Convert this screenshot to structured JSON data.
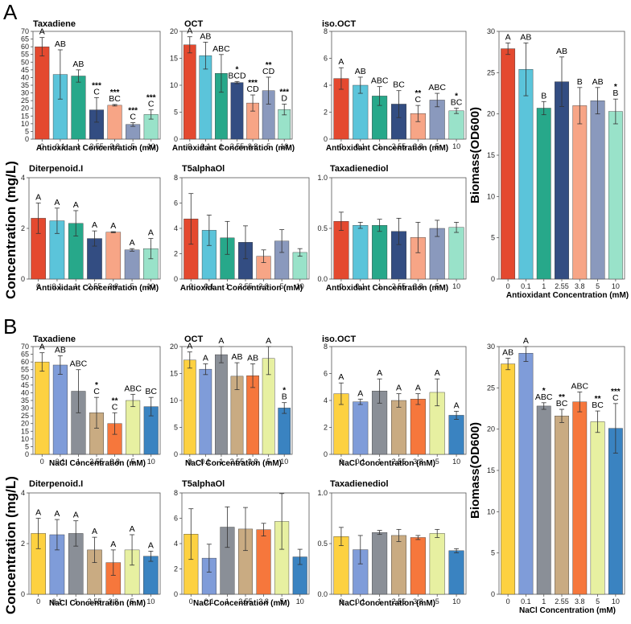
{
  "figure": {
    "section_a_label": "A",
    "section_b_label": "B",
    "concentration_ylabel": "Concentration (mg/L)",
    "biomass_ylabel": "Biomass(OD600)"
  },
  "sections": [
    {
      "label": "A",
      "xlabel": "Antioxidant Concentration (mM)",
      "categories": [
        "0",
        "0.1",
        "1",
        "2.55",
        "3.8",
        "5",
        "10"
      ],
      "colors": [
        "#e4492f",
        "#5bc4da",
        "#27a88a",
        "#334d82",
        "#f7a586",
        "#8a99bd",
        "#99e2c9"
      ]
    },
    {
      "label": "B",
      "xlabel": "NaCl Concentration (mM)",
      "categories": [
        "0",
        "0.1",
        "1",
        "2.55",
        "3.8",
        "5",
        "10"
      ],
      "colors": [
        "#fdd141",
        "#7f9cd9",
        "#8a8f97",
        "#c9ab82",
        "#f6773c",
        "#e7f0a1",
        "#3a83c1"
      ]
    }
  ],
  "chart_data": [
    {
      "type": "bar",
      "section": "A",
      "title": "Taxadiene",
      "xlabel": "Antioxidant Concentration (mM)",
      "ylabel": "Concentration (mg/L)",
      "categories": [
        "0",
        "0.1",
        "1",
        "2.55",
        "3.8",
        "5",
        "10"
      ],
      "values": [
        60,
        42,
        41,
        19,
        22,
        9.5,
        16
      ],
      "errors": [
        6,
        16,
        4,
        8,
        0.5,
        1.2,
        3
      ],
      "ylim": [
        0,
        70
      ],
      "yticks": [
        0,
        5,
        10,
        15,
        20,
        25,
        30,
        35,
        40,
        45,
        50,
        55,
        60,
        65,
        70
      ],
      "letters": [
        "A",
        "AB",
        "AB",
        "C",
        "BC",
        "C",
        "C"
      ],
      "stars": [
        "",
        "",
        "",
        "***",
        "***",
        "***",
        "***"
      ]
    },
    {
      "type": "bar",
      "section": "A",
      "title": "OCT",
      "xlabel": "Antioxidant Concentration (mM)",
      "ylabel": "Concentration (mg/L)",
      "categories": [
        "0",
        "0.1",
        "1",
        "2.55",
        "3.8",
        "5",
        "10"
      ],
      "values": [
        17.5,
        15.5,
        12.2,
        10.5,
        6.7,
        9,
        5.5
      ],
      "errors": [
        1.5,
        2.5,
        3.5,
        0.2,
        1.5,
        2.5,
        1
      ],
      "ylim": [
        0,
        20
      ],
      "yticks": [
        0,
        5,
        10,
        15,
        20
      ],
      "letters": [
        "A",
        "AB",
        "ABC",
        "BCD",
        "CD",
        "CD",
        "D"
      ],
      "stars": [
        "",
        "",
        "",
        "*",
        "***",
        "**",
        "***"
      ]
    },
    {
      "type": "bar",
      "section": "A",
      "title": "iso.OCT",
      "xlabel": "Antioxidant Concentration (mM)",
      "ylabel": "Concentration (mg/L)",
      "categories": [
        "0",
        "0.1",
        "1",
        "2.55",
        "3.8",
        "5",
        "10"
      ],
      "values": [
        4.5,
        4.0,
        3.2,
        2.6,
        1.9,
        2.9,
        2.1
      ],
      "errors": [
        0.8,
        0.6,
        0.7,
        1.0,
        0.6,
        0.5,
        0.2
      ],
      "ylim": [
        0,
        8
      ],
      "yticks": [
        0,
        2,
        4,
        6,
        8
      ],
      "letters": [
        "A",
        "AB",
        "ABC",
        "BC",
        "C",
        "ABC",
        "BC"
      ],
      "stars": [
        "",
        "",
        "",
        "",
        "**",
        "",
        "*"
      ]
    },
    {
      "type": "bar",
      "section": "A",
      "title": "Diterpenoid.I",
      "xlabel": "Antioxidant Concentration (mM)",
      "ylabel": "Concentration (mg/L)",
      "categories": [
        "0",
        "0.1",
        "1",
        "2.55",
        "3.8",
        "5",
        "10"
      ],
      "values": [
        2.4,
        2.3,
        2.2,
        1.6,
        1.85,
        1.15,
        1.2
      ],
      "errors": [
        0.6,
        0.5,
        0.5,
        0.3,
        0.02,
        0.05,
        0.4
      ],
      "ylim": [
        0,
        4
      ],
      "yticks": [
        0,
        2,
        4
      ],
      "letters": [
        "A",
        "A",
        "A",
        "A",
        "A",
        "A",
        "A"
      ],
      "stars": [
        "",
        "",
        "",
        "",
        "",
        "",
        ""
      ]
    },
    {
      "type": "bar",
      "section": "A",
      "title": "T5alphaOl",
      "xlabel": "Antioxidant Concentration (mM)",
      "ylabel": "Concentration (mg/L)",
      "categories": [
        "0",
        "0.1",
        "1",
        "2.55",
        "3.8",
        "5",
        "10"
      ],
      "values": [
        4.75,
        3.85,
        3.25,
        2.9,
        1.8,
        3.0,
        2.1
      ],
      "errors": [
        2.0,
        1.2,
        1.3,
        1.3,
        0.5,
        0.9,
        0.3
      ],
      "ylim": [
        0,
        8
      ],
      "yticks": [
        0,
        2,
        4,
        6,
        8
      ],
      "letters": [
        "",
        "",
        "",
        "",
        "",
        "",
        ""
      ],
      "stars": [
        "",
        "",
        "",
        "",
        "",
        "",
        ""
      ]
    },
    {
      "type": "bar",
      "section": "A",
      "title": "Taxadienediol",
      "xlabel": "Antioxidant Concentration (mM)",
      "ylabel": "Concentration (mg/L)",
      "categories": [
        "0",
        "0.1",
        "1",
        "2.55",
        "3.8",
        "5",
        "10"
      ],
      "values": [
        0.57,
        0.53,
        0.53,
        0.47,
        0.41,
        0.5,
        0.51
      ],
      "errors": [
        0.09,
        0.03,
        0.06,
        0.13,
        0.15,
        0.08,
        0.05
      ],
      "ylim": [
        0,
        1.0
      ],
      "yticks": [
        0.0,
        0.5,
        1.0
      ],
      "ytick_labels": [
        "0.0",
        "0.5",
        "1.0"
      ],
      "letters": [
        "",
        "",
        "",
        "",
        "",
        "",
        ""
      ],
      "stars": [
        "",
        "",
        "",
        "",
        "",
        "",
        ""
      ]
    },
    {
      "type": "bar",
      "section": "A",
      "title": "",
      "xlabel": "Antioxidant Concentration (mM)",
      "ylabel": "Biomass(OD600)",
      "categories": [
        "0",
        "0.1",
        "1",
        "2.55",
        "3.8",
        "5",
        "10"
      ],
      "values": [
        27.9,
        25.4,
        20.7,
        23.9,
        21.0,
        21.6,
        20.3
      ],
      "errors": [
        0.7,
        3.2,
        0.8,
        3.0,
        2.2,
        1.6,
        1.5
      ],
      "ylim": [
        0,
        30
      ],
      "yticks": [
        0,
        5,
        10,
        15,
        20,
        25,
        30
      ],
      "letters": [
        "A",
        "AB",
        "B",
        "AB",
        "B",
        "AB",
        "B"
      ],
      "stars": [
        "",
        "",
        "",
        "",
        "",
        "",
        "*"
      ]
    },
    {
      "type": "bar",
      "section": "B",
      "title": "Taxadiene",
      "xlabel": "NaCl Concentration (mM)",
      "ylabel": "Concentration (mg/L)",
      "categories": [
        "0",
        "0.1",
        "1",
        "2.55",
        "3.8",
        "5",
        "10"
      ],
      "values": [
        60,
        58,
        41,
        27,
        20,
        35,
        31
      ],
      "errors": [
        6,
        6,
        14,
        10,
        7,
        4,
        6
      ],
      "ylim": [
        0,
        70
      ],
      "yticks": [
        0,
        5,
        10,
        15,
        20,
        25,
        30,
        35,
        40,
        45,
        50,
        55,
        60,
        65,
        70
      ],
      "letters": [
        "A",
        "AB",
        "ABC",
        "C",
        "C",
        "ABC",
        "BC"
      ],
      "stars": [
        "",
        "",
        "",
        "*",
        "**",
        "",
        ""
      ]
    },
    {
      "type": "bar",
      "section": "B",
      "title": "OCT",
      "xlabel": "NaCl Concentration (mM)",
      "ylabel": "Concentration (mg/L)",
      "categories": [
        "0",
        "0.1",
        "1",
        "2.55",
        "3.8",
        "5",
        "10"
      ],
      "values": [
        17.5,
        15.8,
        18.5,
        14.5,
        14.6,
        17.8,
        8.6
      ],
      "errors": [
        1.5,
        1.0,
        1.5,
        2.5,
        2.2,
        3.0,
        1.0
      ],
      "ylim": [
        0,
        20
      ],
      "yticks": [
        0,
        5,
        10,
        15,
        20
      ],
      "letters": [
        "A",
        "A",
        "A",
        "AB",
        "AB",
        "A",
        "B"
      ],
      "stars": [
        "",
        "",
        "",
        "",
        "",
        "",
        "*"
      ]
    },
    {
      "type": "bar",
      "section": "B",
      "title": "iso.OCT",
      "xlabel": "NaCl Concentration (mM)",
      "ylabel": "Concentration (mg/L)",
      "categories": [
        "0",
        "0.1",
        "1",
        "2.55",
        "3.8",
        "5",
        "10"
      ],
      "values": [
        4.5,
        3.9,
        4.7,
        4.0,
        4.1,
        4.6,
        2.9
      ],
      "errors": [
        0.8,
        0.2,
        0.9,
        0.5,
        0.4,
        1.0,
        0.3
      ],
      "ylim": [
        0,
        8
      ],
      "yticks": [
        0,
        2,
        4,
        6,
        8
      ],
      "letters": [
        "A",
        "A",
        "A",
        "A",
        "A",
        "A",
        "A"
      ],
      "stars": [
        "",
        "",
        "",
        "",
        "",
        "",
        ""
      ]
    },
    {
      "type": "bar",
      "section": "B",
      "title": "Diterpenoid.I",
      "xlabel": "NaCl Concentration (mM)",
      "ylabel": "Concentration (mg/L)",
      "categories": [
        "0",
        "0.1",
        "1",
        "2.55",
        "3.8",
        "5",
        "10"
      ],
      "values": [
        2.4,
        2.35,
        2.4,
        1.75,
        1.25,
        1.75,
        1.5
      ],
      "errors": [
        0.6,
        0.6,
        0.5,
        0.5,
        0.5,
        0.6,
        0.2
      ],
      "ylim": [
        0,
        4
      ],
      "yticks": [
        0,
        2,
        4
      ],
      "letters": [
        "A",
        "A",
        "A",
        "A",
        "A",
        "A",
        "A"
      ],
      "stars": [
        "",
        "",
        "",
        "",
        "",
        "",
        ""
      ]
    },
    {
      "type": "bar",
      "section": "B",
      "title": "T5alphaOl",
      "xlabel": "NaCl Concentration (mM)",
      "ylabel": "Concentration (mg/L)",
      "categories": [
        "0",
        "0.1",
        "1",
        "2.55",
        "3.8",
        "5",
        "10"
      ],
      "values": [
        4.75,
        2.85,
        5.3,
        5.15,
        5.1,
        5.75,
        2.95
      ],
      "errors": [
        2.0,
        1.1,
        1.6,
        1.7,
        0.5,
        2.2,
        0.6
      ],
      "ylim": [
        0,
        8
      ],
      "yticks": [
        0,
        2,
        4,
        6,
        8
      ],
      "letters": [
        "",
        "",
        "",
        "",
        "",
        "",
        ""
      ],
      "stars": [
        "",
        "",
        "",
        "",
        "",
        "",
        ""
      ]
    },
    {
      "type": "bar",
      "section": "B",
      "title": "Taxadienediol",
      "xlabel": "NaCl Concentration (mM)",
      "ylabel": "Concentration (mg/L)",
      "categories": [
        "0",
        "0.1",
        "1",
        "2.55",
        "3.8",
        "5",
        "10"
      ],
      "values": [
        0.57,
        0.44,
        0.61,
        0.58,
        0.56,
        0.6,
        0.43
      ],
      "errors": [
        0.09,
        0.14,
        0.02,
        0.06,
        0.02,
        0.04,
        0.02
      ],
      "ylim": [
        0,
        1.0
      ],
      "yticks": [
        0.0,
        0.5,
        1.0
      ],
      "ytick_labels": [
        "0.0",
        "0.5",
        "1.0"
      ],
      "letters": [
        "",
        "",
        "",
        "",
        "",
        "",
        ""
      ],
      "stars": [
        "",
        "",
        "",
        "",
        "",
        "",
        ""
      ]
    },
    {
      "type": "bar",
      "section": "B",
      "title": "",
      "xlabel": "NaCl Concentration (mM)",
      "ylabel": "Biomass(OD600)",
      "categories": [
        "0",
        "0.1",
        "1",
        "2.55",
        "3.8",
        "5",
        "10"
      ],
      "values": [
        27.9,
        29.2,
        22.8,
        21.6,
        23.3,
        20.9,
        20.1
      ],
      "errors": [
        0.7,
        1.0,
        0.4,
        0.8,
        1.2,
        1.3,
        3.0
      ],
      "ylim": [
        0,
        30
      ],
      "yticks": [
        0,
        5,
        10,
        15,
        20,
        25,
        30
      ],
      "letters": [
        "AB",
        "A",
        "ABC",
        "BC",
        "ABC",
        "BC",
        "C"
      ],
      "stars": [
        "",
        "",
        "*",
        "**",
        "",
        "**",
        "***"
      ]
    }
  ]
}
